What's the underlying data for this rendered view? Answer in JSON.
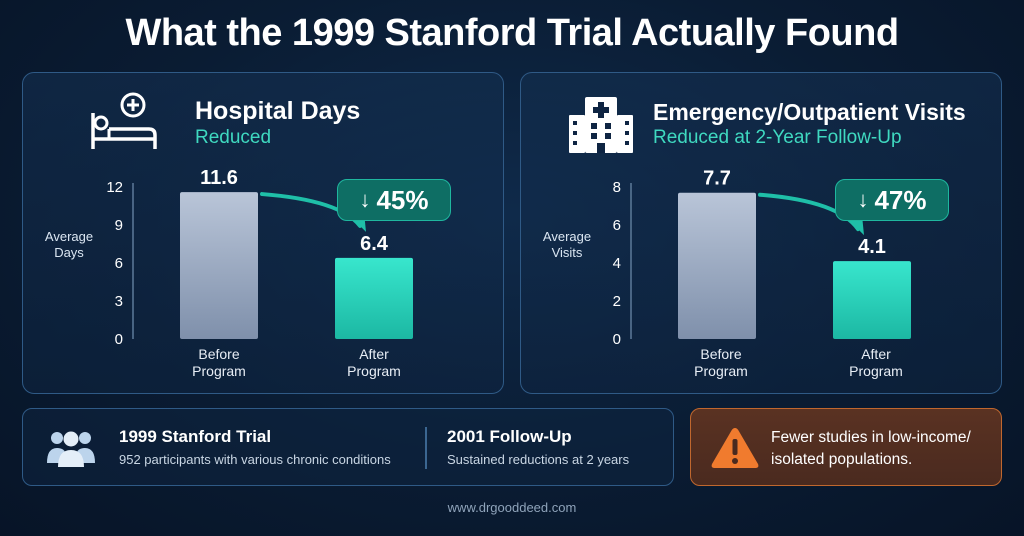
{
  "title": "What the 1999 Stanford Trial Actually Found",
  "panels": [
    {
      "title": "Hospital Days",
      "subtitle": "Reduced",
      "icon": "hospital-bed-icon",
      "ylabel_line1": "Average",
      "ylabel_line2": "Days",
      "badge": "45%",
      "badge_arrow": "↓",
      "cat1_line1": "Before",
      "cat1_line2": "Program",
      "cat2_line1": "After",
      "cat2_line2": "Program",
      "value_labels": [
        "11.6",
        "6.4"
      ]
    },
    {
      "title": "Emergency/Outpatient Visits",
      "subtitle": "Reduced at 2-Year Follow-Up",
      "icon": "hospital-building-icon",
      "ylabel_line1": "Average",
      "ylabel_line2": "Visits",
      "badge": "47%",
      "badge_arrow": "↓",
      "cat1_line1": "Before",
      "cat1_line2": "Program",
      "cat2_line1": "After",
      "cat2_line2": "Program",
      "value_labels": [
        "7.7",
        "4.1"
      ]
    }
  ],
  "chart_data": [
    {
      "type": "bar",
      "title": "Hospital Days",
      "categories": [
        "Before Program",
        "After Program"
      ],
      "values": [
        11.6,
        6.4
      ],
      "ylabel": "Average Days",
      "ylim": [
        0,
        12
      ],
      "yticks": [
        0,
        3,
        6,
        9,
        12
      ],
      "ytick_labels": [
        "0",
        "3",
        "6",
        "9",
        "12"
      ],
      "bar_colors": [
        "#a8b6cc",
        "#2fdcc4"
      ],
      "change_label": "45%"
    },
    {
      "type": "bar",
      "title": "Emergency/Outpatient Visits",
      "categories": [
        "Before Program",
        "After Program"
      ],
      "values": [
        7.7,
        4.1
      ],
      "ylabel": "Average Visits",
      "ylim": [
        0,
        8
      ],
      "yticks": [
        0,
        2,
        4,
        6,
        8
      ],
      "ytick_labels": [
        "0",
        "2",
        "4",
        "6",
        "8"
      ],
      "bar_colors": [
        "#a8b6cc",
        "#2fdcc4"
      ],
      "change_label": "47%"
    }
  ],
  "facts": [
    {
      "title": "1999 Stanford Trial",
      "subtitle": "952 participants with various chronic conditions"
    },
    {
      "title": "2001 Follow-Up",
      "subtitle": "Sustained reductions at 2 years"
    }
  ],
  "warning": {
    "line1": "Fewer studies in low-income/",
    "line2": "isolated populations.",
    "icon": "warning-triangle-icon"
  },
  "footer": "www.drgooddeed.com",
  "colors": {
    "accent": "#3fd9c0",
    "before_bar": "#a8b6cc",
    "after_bar": "#2fdcc4",
    "warning": "#f07b2e"
  }
}
